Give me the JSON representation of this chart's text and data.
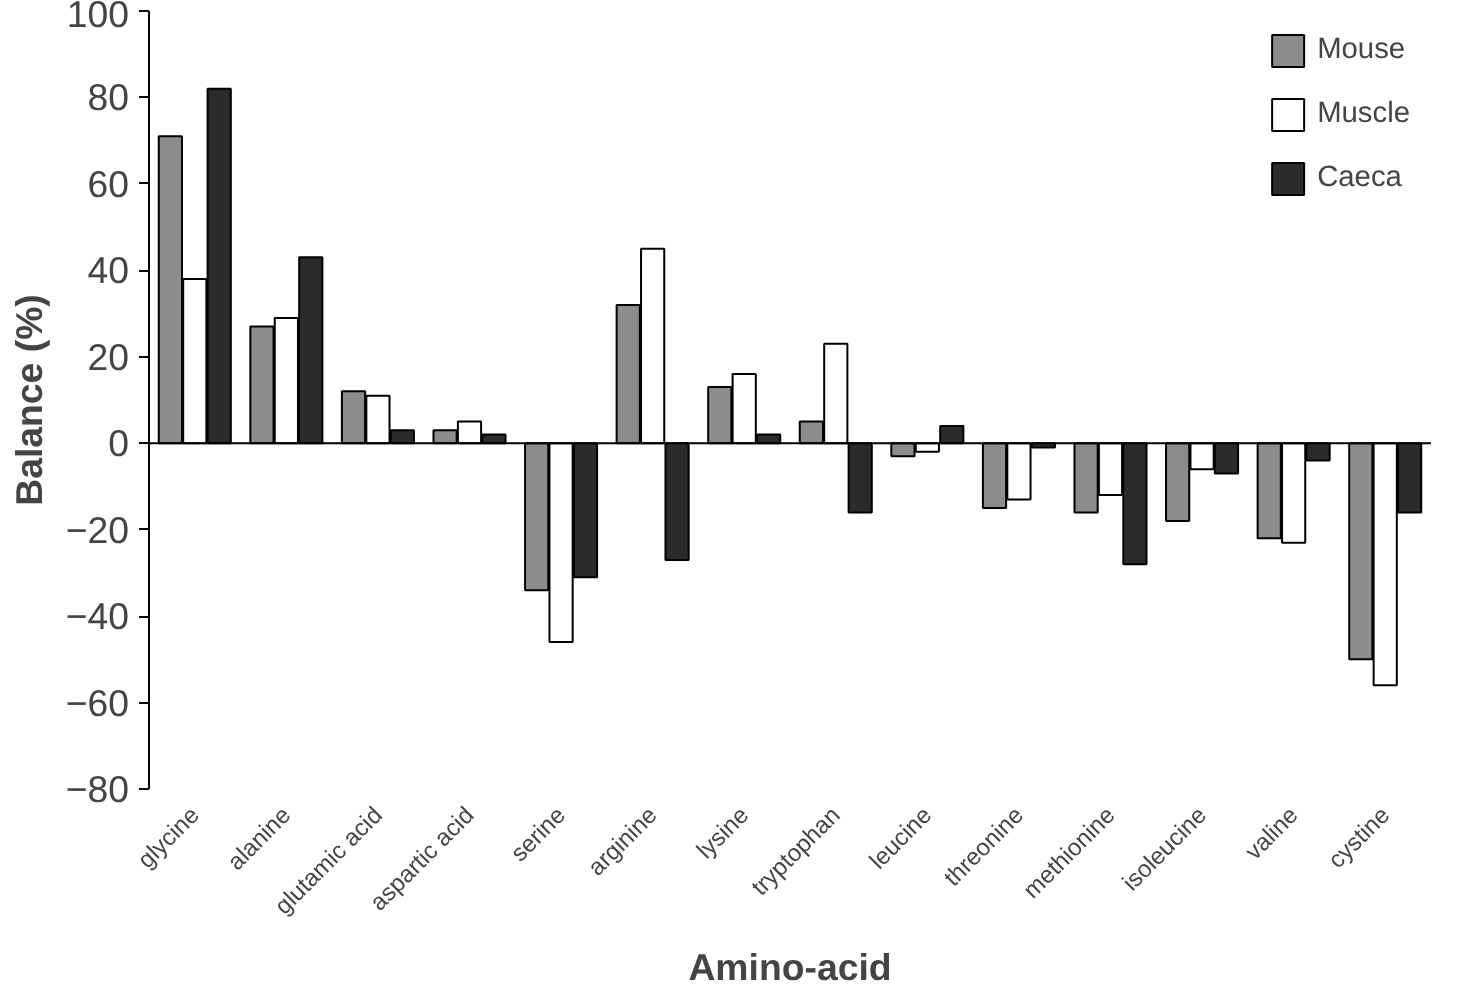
{
  "chart_data": {
    "type": "bar",
    "xlabel": "Amino-acid",
    "ylabel": "Balance (%)",
    "categories": [
      "glycine",
      "alanine",
      "glutamic acid",
      "aspartic acid",
      "serine",
      "arginine",
      "lysine",
      "tryptophan",
      "leucine",
      "threonine",
      "methionine",
      "isoleucine",
      "valine",
      "cystine"
    ],
    "series": [
      {
        "name": "Mouse",
        "color": "#8c8c8c",
        "values": [
          71,
          27,
          12,
          3,
          -34,
          32,
          13,
          5,
          -3,
          -15,
          -16,
          -18,
          -22,
          -50
        ]
      },
      {
        "name": "Muscle",
        "color": "#ffffff",
        "values": [
          38,
          29,
          11,
          5,
          -46,
          45,
          16,
          23,
          -2,
          -13,
          -12,
          -6,
          -23,
          -56
        ]
      },
      {
        "name": "Caeca",
        "color": "#2b2b2b",
        "values": [
          82,
          43,
          3,
          2,
          -31,
          -27,
          2,
          -16,
          4,
          -1,
          -28,
          -7,
          -4,
          -16
        ]
      }
    ],
    "ylim": [
      -80,
      100
    ],
    "yticks": [
      -80,
      -60,
      -40,
      -20,
      0,
      20,
      40,
      60,
      80,
      100
    ],
    "grid": false,
    "ref_lines": [
      {
        "axis": "y",
        "value": 0,
        "color": "#000000"
      }
    ],
    "legend": "top right"
  }
}
